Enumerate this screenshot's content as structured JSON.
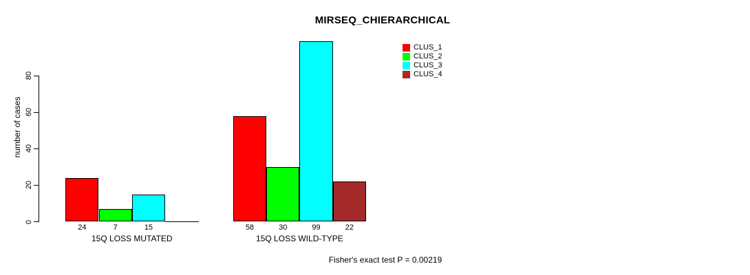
{
  "chart_data": {
    "type": "bar",
    "title": "MIRSEQ_CHIERARCHICAL",
    "ylabel": "number of cases",
    "xlabel": "",
    "yticks": [
      0,
      20,
      40,
      60,
      80
    ],
    "ylim": [
      0,
      99
    ],
    "grid": false,
    "legend_position": "top-right",
    "groups": [
      {
        "label": "15Q LOSS MUTATED",
        "values": [
          24,
          7,
          15,
          0
        ],
        "value_labels": [
          "24",
          "7",
          "15",
          ""
        ]
      },
      {
        "label": "15Q LOSS WILD-TYPE",
        "values": [
          58,
          30,
          99,
          22
        ],
        "value_labels": [
          "58",
          "30",
          "99",
          "22"
        ]
      }
    ],
    "series": [
      {
        "name": "CLUS_1",
        "color": "#FF0000"
      },
      {
        "name": "CLUS_2",
        "color": "#00FF00"
      },
      {
        "name": "CLUS_3",
        "color": "#00FFFF"
      },
      {
        "name": "CLUS_4",
        "color": "#A52A2A"
      }
    ],
    "footnote": "Fisher's exact test P = 0.00219"
  },
  "colors": {
    "foreground": "#000000",
    "background": "#ffffff"
  }
}
